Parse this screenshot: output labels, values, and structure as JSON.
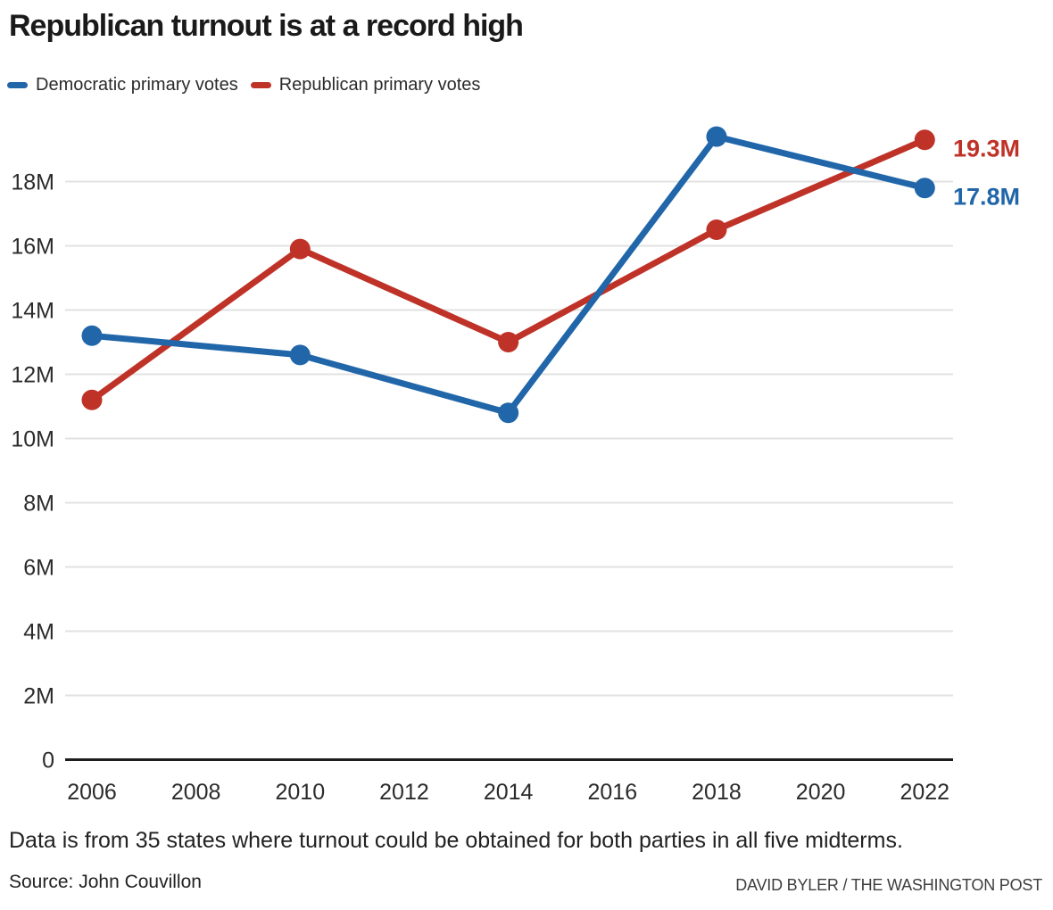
{
  "chart_data": {
    "type": "line",
    "title": "Republican turnout is at a record high",
    "x": [
      2006,
      2010,
      2014,
      2018,
      2022
    ],
    "series": [
      {
        "name": "Democratic primary votes",
        "color": "#2066a9",
        "values": [
          13.2,
          12.6,
          10.8,
          19.4,
          17.8
        ],
        "end_label": "17.8M"
      },
      {
        "name": "Republican primary votes",
        "color": "#bf3228",
        "values": [
          11.2,
          15.9,
          13.0,
          16.5,
          19.3
        ],
        "end_label": "19.3M"
      }
    ],
    "xlabel": "",
    "ylabel": "",
    "xlim": [
      2006,
      2022
    ],
    "ylim": [
      0,
      19.5
    ],
    "xticks": [
      2006,
      2008,
      2010,
      2012,
      2014,
      2016,
      2018,
      2020,
      2022
    ],
    "yticks": [
      {
        "value": 0,
        "label": "0"
      },
      {
        "value": 2,
        "label": "2M"
      },
      {
        "value": 4,
        "label": "4M"
      },
      {
        "value": 6,
        "label": "6M"
      },
      {
        "value": 8,
        "label": "8M"
      },
      {
        "value": 10,
        "label": "10M"
      },
      {
        "value": 12,
        "label": "12M"
      },
      {
        "value": 14,
        "label": "14M"
      },
      {
        "value": 16,
        "label": "16M"
      },
      {
        "value": 18,
        "label": "18M"
      }
    ],
    "grid": "horizontal",
    "legend_position": "top-left"
  },
  "colors": {
    "gridline": "#e2e2e2",
    "axis_line": "#1d1d1d",
    "tick_text": "#2b2b2b"
  },
  "footer": {
    "note": "Data is from 35 states where turnout could be obtained for both parties in all five midterms.",
    "source": "Source: John Couvillon",
    "credit": "DAVID BYLER / THE WASHINGTON POST"
  }
}
